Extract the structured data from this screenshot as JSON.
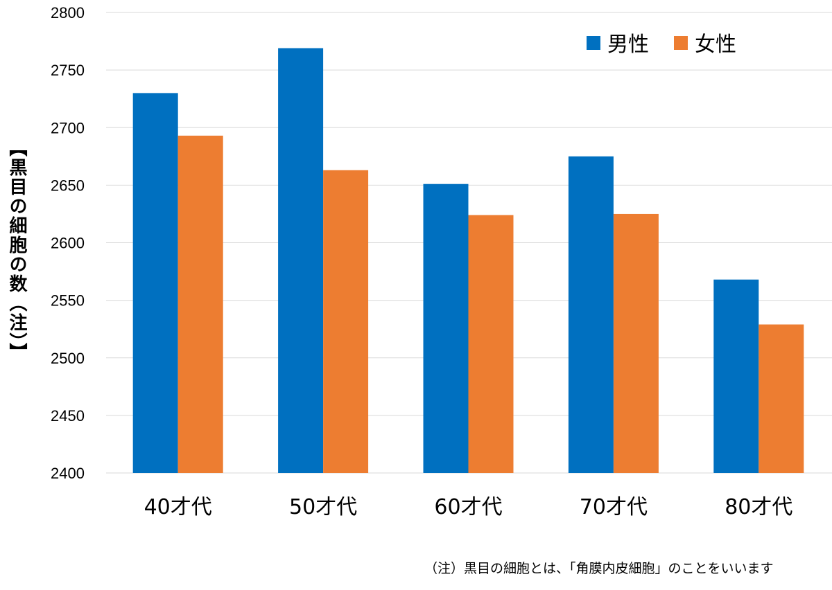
{
  "chart_data": {
    "type": "bar",
    "categories": [
      "40才代",
      "50才代",
      "60才代",
      "70才代",
      "80才代"
    ],
    "series": [
      {
        "name": "男性",
        "color": "#0070C0",
        "values": [
          2730,
          2769,
          2651,
          2675,
          2568
        ]
      },
      {
        "name": "女性",
        "color": "#ED7D31",
        "values": [
          2693,
          2663,
          2624,
          2625,
          2529
        ]
      }
    ],
    "title": "",
    "xlabel": "",
    "ylabel": "【黒目の細胞の数（注）】",
    "ylim": [
      2400,
      2800
    ],
    "yticks": [
      2400,
      2450,
      2500,
      2550,
      2600,
      2650,
      2700,
      2750,
      2800
    ],
    "grid": true,
    "legend_position": "top-right",
    "note": "（注）黒目の細胞とは、「角膜内皮細胞」のことをいいます"
  }
}
